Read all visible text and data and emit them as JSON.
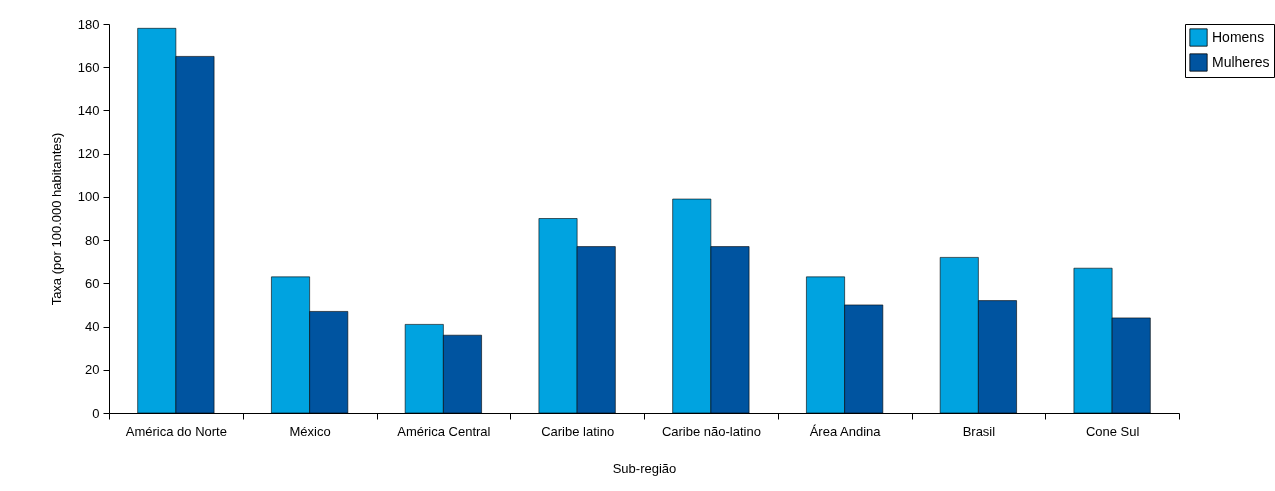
{
  "chart_data": {
    "type": "bar",
    "xlabel": "Sub-região",
    "ylabel": "Taxa (por 100.000 habitantes)",
    "categories": [
      "América do Norte",
      "México",
      "América Central",
      "Caribe latino",
      "Caribe não-latino",
      "Área Andina",
      "Brasil",
      "Cone Sul"
    ],
    "series": [
      {
        "name": "Homens",
        "color": "#00a3e0",
        "values": [
          178,
          63,
          41,
          90,
          99,
          63,
          72,
          67
        ]
      },
      {
        "name": "Mulheres",
        "color": "#0054a0",
        "values": [
          165,
          47,
          36,
          77,
          77,
          50,
          52,
          44
        ]
      }
    ],
    "ylim": [
      0,
      180
    ],
    "yticks": [
      0,
      20,
      40,
      60,
      80,
      100,
      120,
      140,
      160,
      180
    ],
    "grid": false,
    "legend": "right"
  }
}
